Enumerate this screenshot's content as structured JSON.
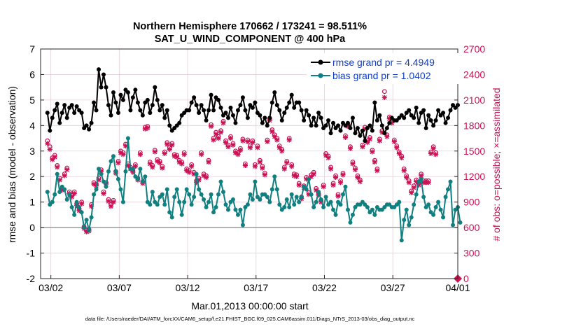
{
  "chart_data": {
    "type": "line",
    "title": "Northern Hemisphere 170662 / 173241 = 98.511%",
    "subtitle": "SAT_U_WIND_COMPONENT @ 400 hPa",
    "xlabel": "Mar.01,2013 00:00:00 start",
    "ylabel_left": "rmse and bias (model - observation)",
    "ylabel_right": "# of obs: o=possible; ×=assimilated",
    "footer": "data file: /Users/raeder/DAI/ATM_forcXX/CAM6_setup/f.e21.FHIST_BGC.f09_025.CAM6assim.011/Diags_NTrS_2013-03/obs_diag_output.nc",
    "xlim": [
      0.5,
      31.0
    ],
    "x_tick_values": [
      1.25,
      6.25,
      11.25,
      16.25,
      21.25,
      26.25,
      31.0
    ],
    "x_tick_labels": [
      "03/02",
      "03/07",
      "03/12",
      "03/17",
      "03/22",
      "03/27",
      "04/01"
    ],
    "ylim_left": [
      -2,
      7
    ],
    "y_ticks_left": [
      "-2",
      "-1",
      "0",
      "1",
      "2",
      "3",
      "4",
      "5",
      "6",
      "7"
    ],
    "ylim_right": [
      0,
      2700
    ],
    "y_ticks_right": [
      "0",
      "300",
      "600",
      "900",
      "1200",
      "1500",
      "1800",
      "2100",
      "2400",
      "2700"
    ],
    "grid": true,
    "legend_position": "top-right",
    "colors": {
      "rmse": "#000000",
      "bias": "#0f7f7f",
      "obs": "#cc1155",
      "zero_line": "#999999",
      "legend_text": "#1040cc"
    },
    "series": [
      {
        "name": "rmse grand pr = 4.4949",
        "axis": "left",
        "values": [
          4.5,
          3.8,
          4.3,
          4.6,
          4.85,
          4.1,
          4.5,
          4.8,
          4.3,
          4.7,
          4.8,
          4.5,
          4.75,
          4.6,
          4.5,
          3.9,
          4.0,
          3.85,
          4.1,
          4.9,
          4.6,
          6.2,
          5.5,
          6.0,
          5.5,
          4.8,
          4.4,
          5.3,
          4.9,
          4.5,
          5.2,
          5.0,
          5.4,
          5.3,
          4.6,
          5.1,
          5.4,
          4.9,
          4.6,
          4.4,
          4.9,
          5.0,
          4.5,
          4.8,
          5.5,
          5.0,
          4.6,
          4.8,
          4.3,
          4.6,
          4.0,
          3.8,
          3.9,
          4.0,
          4.1,
          4.4,
          4.5,
          4.6,
          4.6,
          4.9,
          5.1,
          4.8,
          4.5,
          4.8,
          4.6,
          4.2,
          4.6,
          5.2,
          4.6,
          5.1,
          5.0,
          4.7,
          4.4,
          4.5,
          4.3,
          4.7,
          4.4,
          4.1,
          4.6,
          4.8,
          5.1,
          4.6,
          4.3,
          4.8,
          4.7,
          4.9,
          4.5,
          4.4,
          4.1,
          4.3,
          4.0,
          4.3,
          4.9,
          5.3,
          4.8,
          4.6,
          4.2,
          4.5,
          4.7,
          4.9,
          5.2,
          4.7,
          4.9,
          4.9,
          4.6,
          4.2,
          4.6,
          4.4,
          4.0,
          4.3,
          4.0,
          4.5,
          4.3,
          3.9,
          4.0,
          4.2,
          3.7,
          4.1,
          3.9,
          4.0,
          3.8,
          4.1,
          4.0,
          4.1,
          3.9,
          4.3,
          3.7,
          3.9,
          3.6,
          3.8,
          3.4,
          3.9,
          4.0,
          3.8,
          4.9,
          4.2,
          4.4,
          4.0,
          3.7,
          3.9,
          4.1,
          4.3,
          4.2,
          4.2,
          4.3,
          4.4,
          4.3,
          4.5,
          4.6,
          4.4,
          4.3,
          4.7,
          4.1,
          4.5,
          4.6,
          3.9,
          4.4,
          4.2,
          4.0,
          4.2,
          4.6,
          4.4,
          4.5,
          4.1,
          4.3,
          4.6,
          4.8,
          4.7,
          4.8
        ]
      },
      {
        "name": "bias grand pr = 1.0402",
        "axis": "left",
        "values": [
          1.4,
          0.9,
          1.0,
          1.3,
          2.1,
          1.4,
          1.6,
          1.5,
          1.1,
          1.3,
          0.8,
          0.5,
          1.0,
          0.8,
          0.6,
          0.0,
          0.3,
          -0.1,
          0.4,
          1.3,
          1.5,
          2.3,
          2.1,
          1.8,
          1.6,
          2.2,
          2.6,
          2.8,
          2.2,
          1.9,
          1.5,
          1.0,
          2.2,
          3.5,
          2.3,
          2.3,
          2.0,
          1.9,
          2.3,
          1.8,
          2.0,
          1.0,
          0.9,
          1.4,
          1.0,
          0.9,
          1.2,
          1.3,
          0.9,
          1.5,
          0.6,
          0.4,
          1.2,
          1.5,
          1.0,
          0.5,
          1.0,
          1.5,
          1.3,
          0.9,
          1.2,
          2.1,
          1.5,
          1.3,
          1.1,
          0.8,
          1.0,
          1.3,
          0.6,
          0.8,
          1.3,
          1.8,
          1.4,
          0.9,
          0.7,
          1.0,
          1.1,
          0.7,
          0.5,
          0.7,
          0.1,
          0.8,
          0.9,
          1.3,
          1.1,
          1.8,
          1.2,
          1.1,
          1.3,
          1.3,
          1.2,
          1.0,
          1.5,
          2.0,
          1.5,
          0.9,
          0.7,
          0.8,
          1.1,
          0.8,
          1.3,
          0.9,
          1.2,
          1.0,
          1.2,
          1.6,
          1.5,
          1.9,
          1.3,
          0.8,
          1.0,
          1.4,
          1.1,
          0.8,
          1.2,
          0.9,
          1.0,
          0.7,
          0.5,
          1.0,
          0.9,
          1.3,
          1.6,
          0.7,
          0.2,
          0.5,
          0.8,
          0.9,
          0.9,
          1.0,
          0.9,
          0.8,
          0.6,
          0.7,
          0.5,
          0.8,
          0.7,
          0.7,
          0.8,
          0.9,
          0.9,
          0.8,
          0.8,
          0.9,
          1.0,
          -0.5,
          0.3,
          0.7,
          0.1,
          0.4,
          0.9,
          1.3,
          1.8,
          1.9,
          1.2,
          0.8,
          0.9,
          0.6,
          0.5,
          0.8,
          1.0,
          0.7,
          0.4,
          1.2,
          1.5,
          1.8,
          0.1,
          0.7,
          0.8,
          0.2
        ]
      },
      {
        "name": "possible",
        "axis": "right",
        "marker": "o",
        "values": [
          1620,
          1550,
          1420,
          1450,
          1330,
          1180,
          1060,
          1230,
          1300,
          1020,
          980,
          1020,
          880,
          820,
          900,
          610,
          570,
          580,
          870,
          1130,
          1110,
          1180,
          1280,
          1020,
          1130,
          930,
          870,
          920,
          1260,
          1380,
          1500,
          1480,
          1580,
          1350,
          1310,
          1270,
          1340,
          1180,
          1480,
          1140,
          1780,
          1790,
          1370,
          1330,
          1510,
          1400,
          1380,
          1320,
          1490,
          1600,
          1540,
          1590,
          1460,
          1450,
          1390,
          1370,
          1480,
          1290,
          1270,
          1340,
          1250,
          1150,
          1180,
          1480,
          1230,
          1210,
          1390,
          1810,
          1650,
          1720,
          1670,
          1740,
          1850,
          1620,
          1570,
          1670,
          1590,
          1500,
          1480,
          1530,
          1640,
          1350,
          1630,
          1560,
          1620,
          1340,
          1560,
          1390,
          1320,
          1240,
          1630,
          1880,
          1750,
          1690,
          1650,
          1560,
          1520,
          1310,
          1380,
          1650,
          1340,
          1230,
          1220,
          1120,
          960,
          1090,
          1190,
          1010,
          1220,
          1250,
          1060,
          1000,
          920,
          1100,
          1470,
          1440,
          1310,
          1120,
          1210,
          990,
          1150,
          1240,
          1680,
          1810,
          1550,
          1370,
          1300,
          1210,
          1160,
          1570,
          1780,
          1620,
          1660,
          1510,
          1390,
          1290,
          1640,
          1740,
          2200,
          1690,
          1900,
          1850,
          1630,
          1560,
          1490,
          1440,
          1290,
          1210,
          1150,
          1030,
          1090,
          1160,
          1120,
          1230,
          1150,
          1150,
          1150,
          1490,
          1550,
          1480
        ]
      },
      {
        "name": "assimilated",
        "axis": "right",
        "marker": "x",
        "values": [
          1590,
          1520,
          1400,
          1430,
          1310,
          1160,
          1040,
          1210,
          1280,
          1000,
          960,
          1000,
          860,
          800,
          880,
          590,
          550,
          560,
          850,
          1110,
          1090,
          1160,
          1260,
          1000,
          1110,
          910,
          850,
          900,
          1240,
          1360,
          1480,
          1460,
          1560,
          1330,
          1290,
          1250,
          1320,
          1160,
          1460,
          1120,
          1760,
          1770,
          1350,
          1310,
          1490,
          1380,
          1360,
          1300,
          1470,
          1580,
          1520,
          1570,
          1440,
          1430,
          1370,
          1350,
          1460,
          1270,
          1250,
          1320,
          1230,
          1130,
          1160,
          1460,
          1210,
          1190,
          1370,
          1790,
          1630,
          1700,
          1650,
          1720,
          1830,
          1600,
          1550,
          1650,
          1570,
          1480,
          1460,
          1510,
          1620,
          1330,
          1610,
          1540,
          1600,
          1320,
          1540,
          1370,
          1300,
          1220,
          1610,
          1860,
          1730,
          1670,
          1630,
          1540,
          1500,
          1290,
          1360,
          1630,
          1320,
          1210,
          1200,
          1100,
          940,
          1070,
          1170,
          990,
          1200,
          1230,
          1040,
          980,
          900,
          1080,
          1450,
          1420,
          1290,
          1100,
          1190,
          970,
          1130,
          1220,
          1660,
          1790,
          1530,
          1350,
          1280,
          1190,
          1140,
          1550,
          1760,
          1600,
          1640,
          1490,
          1370,
          1270,
          1620,
          1720,
          2130,
          1670,
          1880,
          1830,
          1610,
          1540,
          1470,
          1420,
          1270,
          1190,
          1130,
          1010,
          1070,
          1140,
          1100,
          1210,
          1130,
          1130,
          1130,
          1470,
          1530,
          1460
        ]
      }
    ]
  }
}
